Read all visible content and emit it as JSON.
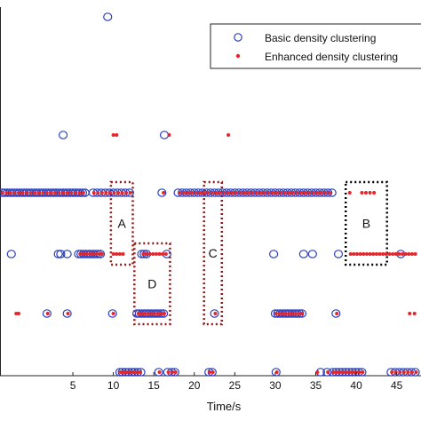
{
  "chart_data": {
    "type": "scatter",
    "title": "",
    "xlabel": "Time/s",
    "ylabel": "",
    "xlim": [
      -4,
      48
    ],
    "x_ticks": [
      5,
      10,
      15,
      20,
      25,
      30,
      35,
      40,
      45
    ],
    "rows": [
      1,
      2,
      3,
      4,
      5,
      6
    ],
    "legend_position": "top-right",
    "series": [
      {
        "name": "Basic density clustering",
        "marker": "open-circle",
        "color": "#2a3fbf",
        "row_points": [
          {
            "row": 6,
            "x": [
              9.3
            ]
          },
          {
            "row": 5,
            "x": [
              3.8,
              16.3
            ]
          },
          {
            "row": 4,
            "x": [
              -3.7,
              -3.4,
              -3.1,
              -2.8,
              -2.5,
              -2.2,
              -1.9,
              -1.6,
              -1.3,
              -1.0,
              -0.7,
              -0.4,
              -0.1,
              0.2,
              0.5,
              0.8,
              1.1,
              1.4,
              1.7,
              2.0,
              2.3,
              2.6,
              2.9,
              3.2,
              3.5,
              3.8,
              4.1,
              4.4,
              4.7,
              5.0,
              5.3,
              5.6,
              5.9,
              6.2,
              6.5,
              7.5,
              8.0,
              8.5,
              9.0,
              9.5,
              10.0,
              10.5,
              11.0,
              11.5,
              12.0,
              16.0,
              18.0,
              18.5,
              19.0,
              19.5,
              20.0,
              20.5,
              21.0,
              21.5,
              22.0,
              22.5,
              23.0,
              23.5,
              24.0,
              24.5,
              25.0,
              25.5,
              26.0,
              26.5,
              27.0,
              27.5,
              28.0,
              28.5,
              29.0,
              29.5,
              30.0,
              30.5,
              31.0,
              31.5,
              32.0,
              32.5,
              33.0,
              33.5,
              34.0,
              34.5,
              35.0,
              35.5,
              36.0,
              36.5,
              37.0
            ]
          },
          {
            "row": 3,
            "x": [
              -2.6,
              3.2,
              3.5,
              4.3,
              5.7,
              6.0,
              6.3,
              6.6,
              6.9,
              7.2,
              7.5,
              7.8,
              8.1,
              8.4,
              13.5,
              13.8,
              14.1,
              16.6,
              29.8,
              33.5,
              34.6,
              37.8,
              45.5
            ]
          },
          {
            "row": 2,
            "x": [
              1.8,
              4.3,
              9.9,
              12.9,
              13.2,
              13.5,
              13.8,
              14.1,
              14.4,
              14.7,
              15.0,
              15.3,
              15.6,
              15.9,
              16.2,
              22.5,
              30.0,
              30.3,
              30.6,
              30.9,
              31.2,
              31.5,
              31.8,
              32.1,
              32.4,
              32.7,
              33.0,
              33.3,
              37.5
            ]
          },
          {
            "row": 1,
            "x": [
              10.8,
              11.1,
              11.5,
              11.9,
              12.3,
              12.6,
              13.0,
              13.4,
              15.6,
              16.7,
              17.2,
              17.6,
              21.8,
              22.2,
              30.1,
              35.6,
              36.4,
              37.1,
              37.5,
              37.9,
              38.3,
              38.7,
              39.1,
              39.5,
              39.9,
              40.3,
              40.7,
              44.3,
              44.8,
              45.3,
              45.8,
              46.3,
              46.8,
              47.3
            ]
          }
        ]
      },
      {
        "name": "Enhanced density clustering",
        "marker": "dot",
        "color": "#e5252a",
        "row_points": [
          {
            "row": 5,
            "x": [
              10.0,
              10.4,
              16.9,
              24.2
            ]
          },
          {
            "row": 4,
            "x": [
              -3.7,
              -3.2,
              -2.7,
              -2.2,
              -1.7,
              -1.2,
              -0.7,
              -0.2,
              0.3,
              0.8,
              1.3,
              1.8,
              2.3,
              2.8,
              3.3,
              3.8,
              4.3,
              4.8,
              5.3,
              5.8,
              6.3,
              7.6,
              8.1,
              8.6,
              9.1,
              9.6,
              10.1,
              10.6,
              11.1,
              11.6,
              12.1,
              16.2,
              18.2,
              18.7,
              19.2,
              19.7,
              20.2,
              20.7,
              21.2,
              21.7,
              22.2,
              22.7,
              23.2,
              23.7,
              24.2,
              24.7,
              25.2,
              25.7,
              26.2,
              26.7,
              27.2,
              27.7,
              28.2,
              28.7,
              29.2,
              29.7,
              30.2,
              30.7,
              31.2,
              31.7,
              32.2,
              32.7,
              33.2,
              33.7,
              34.2,
              34.7,
              35.2,
              35.7,
              36.2,
              36.7,
              39.2,
              40.7,
              41.2,
              41.7,
              42.2
            ]
          },
          {
            "row": 3,
            "x": [
              5.9,
              6.3,
              6.7,
              7.1,
              7.5,
              7.9,
              8.3,
              8.6,
              10.0,
              10.4,
              10.8,
              11.2,
              13.7,
              14.1,
              14.5,
              14.9,
              15.3,
              15.7,
              16.1,
              16.5,
              39.3,
              39.7,
              40.1,
              40.5,
              40.9,
              41.3,
              41.7,
              42.1,
              42.5,
              42.9,
              43.3,
              43.7,
              44.1,
              44.5,
              44.9,
              45.3,
              45.7,
              46.1,
              46.5,
              46.9,
              47.3
            ]
          },
          {
            "row": 2,
            "x": [
              -2.0,
              -1.7,
              1.9,
              4.4,
              10.0,
              13.1,
              13.5,
              13.9,
              14.3,
              14.7,
              15.1,
              15.5,
              15.9,
              16.3,
              22.6,
              30.1,
              30.5,
              30.9,
              31.3,
              31.7,
              32.1,
              32.5,
              32.9,
              33.3,
              37.6,
              46.6,
              47.2
            ]
          },
          {
            "row": 1,
            "x": [
              10.9,
              11.3,
              11.7,
              12.1,
              12.5,
              12.9,
              13.3,
              15.7,
              16.8,
              17.3,
              17.7,
              21.9,
              22.3,
              30.2,
              35.2,
              36.5,
              37.2,
              37.6,
              38.0,
              38.4,
              38.8,
              39.2,
              39.6,
              40.0,
              40.4,
              40.8,
              44.4,
              44.9,
              45.4,
              45.9,
              46.4,
              46.9,
              47.4
            ]
          }
        ]
      }
    ],
    "annotations": [
      {
        "label": "A",
        "x_range": [
          9.7,
          12.4
        ],
        "row_range": [
          3,
          4
        ],
        "style": "dotted",
        "color": "#8b1a1a"
      },
      {
        "label": "D",
        "x_range": [
          12.6,
          17.0
        ],
        "row_range": [
          2,
          3
        ],
        "style": "dotted",
        "color": "#8b1a1a"
      },
      {
        "label": "C",
        "x_range": [
          21.2,
          23.4
        ],
        "row_range": [
          2,
          4
        ],
        "style": "dotted",
        "color": "#8b1a1a"
      },
      {
        "label": "B",
        "x_range": [
          38.7,
          43.8
        ],
        "row_range": [
          3,
          4
        ],
        "style": "dotted",
        "color": "#000000"
      }
    ]
  }
}
